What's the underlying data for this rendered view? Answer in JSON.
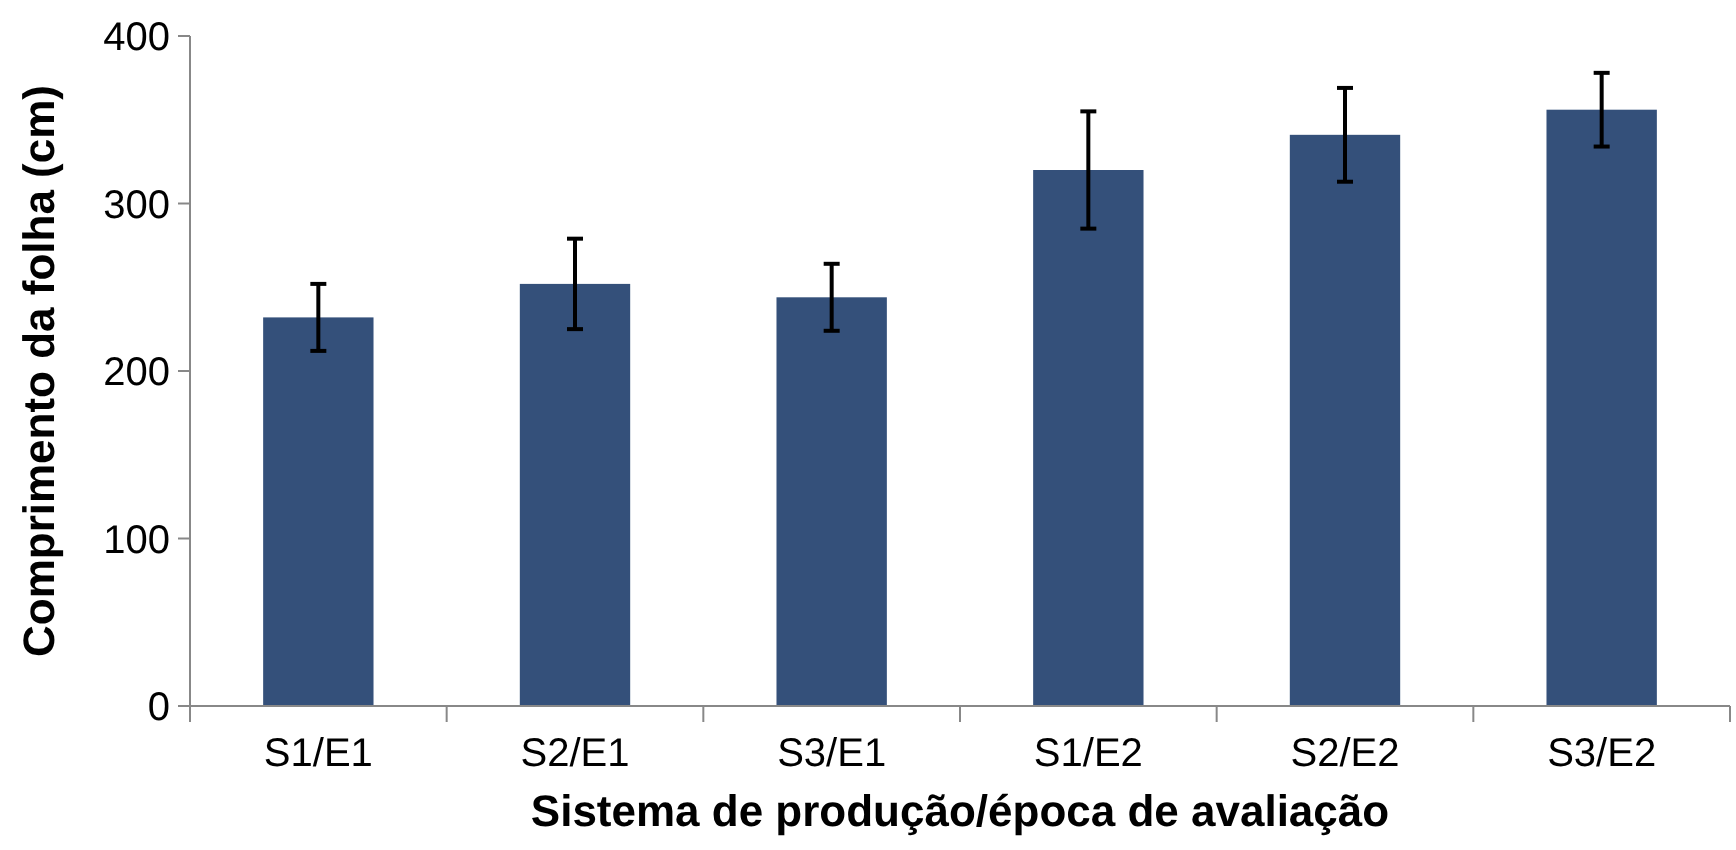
{
  "chart_data": {
    "type": "bar",
    "xlabel": "Sistema de produção/época de avaliação",
    "ylabel": "Comprimento da folha (cm)",
    "categories": [
      "S1/E1",
      "S2/E1",
      "S3/E1",
      "S1/E2",
      "S2/E2",
      "S3/E2"
    ],
    "values": [
      232,
      252,
      244,
      320,
      341,
      356
    ],
    "errors": [
      20,
      27,
      20,
      35,
      28,
      22
    ],
    "color": "#34507a",
    "ylim": [
      0,
      400
    ],
    "yticks": [
      0,
      100,
      200,
      300,
      400
    ],
    "grid": false
  }
}
